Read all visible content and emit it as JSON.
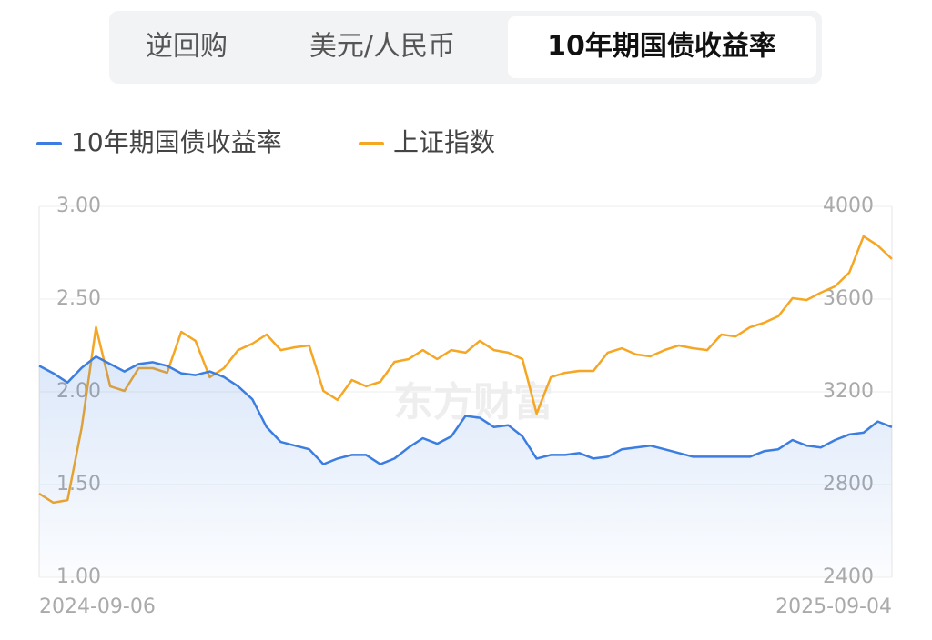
{
  "tabs": [
    {
      "label": "逆回购",
      "active": false
    },
    {
      "label": "美元/人民币",
      "active": false
    },
    {
      "label": "10年期国债收益率",
      "active": true
    }
  ],
  "watermark": "东方财富",
  "chart_data": {
    "type": "line",
    "categories": [
      "2024-09-06",
      null,
      null,
      null,
      null,
      null,
      null,
      null,
      null,
      null,
      null,
      null,
      null,
      null,
      null,
      null,
      null,
      null,
      null,
      null,
      null,
      null,
      null,
      null,
      null,
      null,
      null,
      null,
      null,
      null,
      null,
      null,
      null,
      null,
      null,
      null,
      null,
      null,
      null,
      null,
      null,
      null,
      null,
      null,
      null,
      null,
      null,
      null,
      null,
      null,
      null,
      null,
      null,
      null,
      null,
      null,
      null,
      null,
      null,
      null,
      "2025-09-04"
    ],
    "series": [
      {
        "name": "10年期国债收益率",
        "color": "#3b7de0",
        "axis": "y",
        "values": [
          2.14,
          2.1,
          2.05,
          2.13,
          2.19,
          2.15,
          2.11,
          2.15,
          2.16,
          2.14,
          2.1,
          2.09,
          2.11,
          2.08,
          2.03,
          1.96,
          1.81,
          1.73,
          1.71,
          1.69,
          1.61,
          1.64,
          1.66,
          1.66,
          1.61,
          1.64,
          1.7,
          1.75,
          1.72,
          1.76,
          1.87,
          1.86,
          1.81,
          1.82,
          1.76,
          1.64,
          1.66,
          1.66,
          1.67,
          1.64,
          1.65,
          1.69,
          1.7,
          1.71,
          1.69,
          1.67,
          1.65,
          1.65,
          1.65,
          1.65,
          1.65,
          1.68,
          1.69,
          1.74,
          1.71,
          1.7,
          1.74,
          1.77,
          1.78,
          1.84,
          1.81
        ]
      },
      {
        "name": "上证指数",
        "color": "#f5a623",
        "axis": "y2",
        "values": [
          2761,
          2722,
          2733,
          3047,
          3479,
          3224,
          3204,
          3302,
          3302,
          3282,
          3459,
          3420,
          3263,
          3302,
          3380,
          3408,
          3447,
          3380,
          3392,
          3400,
          3204,
          3165,
          3251,
          3224,
          3243,
          3329,
          3341,
          3380,
          3341,
          3380,
          3369,
          3420,
          3380,
          3369,
          3341,
          3106,
          3263,
          3282,
          3290,
          3290,
          3369,
          3388,
          3361,
          3353,
          3380,
          3400,
          3388,
          3380,
          3447,
          3439,
          3478,
          3498,
          3526,
          3604,
          3596,
          3628,
          3655,
          3714,
          3871,
          3831,
          3773
        ]
      }
    ],
    "ylim": [
      1,
      3
    ],
    "yticks": [
      {
        "value": 1,
        "label": "1.00"
      },
      {
        "value": 1.5,
        "label": "1.50"
      },
      {
        "value": 2,
        "label": "2.00"
      },
      {
        "value": 2.5,
        "label": "2.50"
      },
      {
        "value": 3,
        "label": "3.00"
      }
    ],
    "y2lim": [
      2400,
      4000
    ],
    "y2ticks": [
      2400,
      2800,
      3200,
      3600,
      4000
    ],
    "grid": true,
    "area_under": "y"
  }
}
